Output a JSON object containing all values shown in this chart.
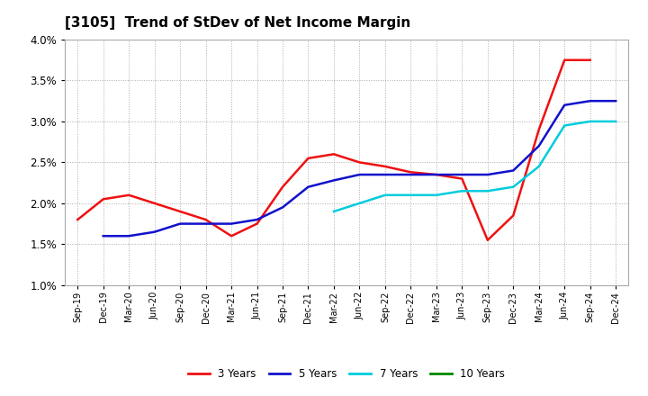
{
  "title": "[3105]  Trend of StDev of Net Income Margin",
  "x_labels": [
    "Sep-19",
    "Dec-19",
    "Mar-20",
    "Jun-20",
    "Sep-20",
    "Dec-20",
    "Mar-21",
    "Jun-21",
    "Sep-21",
    "Dec-21",
    "Mar-22",
    "Jun-22",
    "Sep-22",
    "Dec-22",
    "Mar-23",
    "Jun-23",
    "Sep-23",
    "Dec-23",
    "Mar-24",
    "Jun-24",
    "Sep-24",
    "Dec-24"
  ],
  "y_min": 0.01,
  "y_max": 0.04,
  "series": {
    "3 Years": {
      "color": "#EE1111",
      "values": [
        0.018,
        0.0205,
        0.021,
        0.02,
        0.019,
        0.018,
        0.016,
        0.0175,
        0.022,
        0.0255,
        0.026,
        0.025,
        0.0245,
        0.0238,
        0.0235,
        0.023,
        0.0155,
        0.0185,
        0.029,
        0.0375,
        0.0375,
        null
      ]
    },
    "5 Years": {
      "color": "#1111CC",
      "values": [
        null,
        0.016,
        0.016,
        0.0165,
        0.0175,
        0.0175,
        0.0175,
        0.018,
        0.0195,
        0.022,
        0.0228,
        0.0235,
        0.0235,
        0.0235,
        0.0235,
        0.0235,
        0.0235,
        0.024,
        0.027,
        0.032,
        0.0325,
        0.0325
      ]
    },
    "7 Years": {
      "color": "#00CCDD",
      "values": [
        null,
        null,
        null,
        null,
        null,
        null,
        null,
        null,
        null,
        null,
        0.019,
        0.02,
        0.021,
        0.021,
        0.021,
        0.0215,
        0.0215,
        0.022,
        0.0245,
        0.0295,
        0.03,
        0.03
      ]
    },
    "10 Years": {
      "color": "#008800",
      "values": [
        null,
        null,
        null,
        null,
        null,
        null,
        null,
        null,
        null,
        null,
        null,
        null,
        null,
        null,
        null,
        null,
        null,
        null,
        null,
        null,
        null,
        null
      ]
    }
  },
  "legend_order": [
    "3 Years",
    "5 Years",
    "7 Years",
    "10 Years"
  ]
}
